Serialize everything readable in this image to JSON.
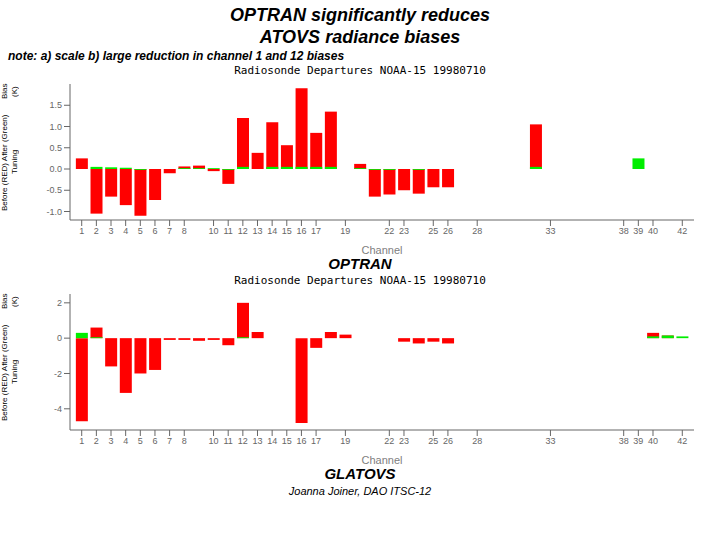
{
  "title": "OPTRAN significantly reduces",
  "subtitle": "ATOVS radiance biases",
  "annotations": [
    "note: a) scale b) large reduction in channel 1 and 12 biases",
    "Joanna Joiner, DAO ITSC-12"
  ],
  "chart_data": [
    {
      "type": "bar",
      "title": "Radiosonde Departures  NOAA-15  19980710",
      "xlabel": "Channel",
      "ylabel": "Before (RED) After (Green) Tuning\nBias (K)",
      "annotations": [
        "OPTRAN"
      ],
      "grid": false,
      "x": [
        1,
        2,
        3,
        4,
        5,
        6,
        7,
        8,
        9,
        10,
        11,
        12,
        13,
        14,
        15,
        16,
        17,
        18,
        19,
        20,
        21,
        22,
        23,
        24,
        25,
        26,
        27,
        28,
        29,
        30,
        31,
        32,
        33,
        34,
        35,
        36,
        37,
        38,
        39,
        40,
        41,
        42
      ],
      "xlim": [
        0.2,
        42.8
      ],
      "xticks": [
        1,
        2,
        3,
        4,
        5,
        6,
        7,
        8,
        10,
        11,
        12,
        13,
        14,
        15,
        16,
        17,
        19,
        22,
        23,
        25,
        26,
        28,
        33,
        38,
        39,
        40,
        42
      ],
      "ylim": [
        -1.2,
        2.0
      ],
      "yticks": [
        {
          "value": -1.0,
          "label": "-1.0"
        },
        {
          "value": -0.5,
          "label": "-0.5"
        },
        {
          "value": 0.0,
          "label": "0.0"
        },
        {
          "value": 0.5,
          "label": "0.5"
        },
        {
          "value": 1.0,
          "label": "1.0"
        },
        {
          "value": 1.5,
          "label": "1.5"
        }
      ],
      "series": [
        {
          "color": "red",
          "values": [
            0.25,
            -1.05,
            -0.65,
            -0.85,
            -1.1,
            -0.73,
            -0.1,
            0.06,
            0.08,
            -0.05,
            -0.35,
            1.2,
            0.38,
            1.1,
            0.56,
            1.9,
            0.85,
            1.35,
            0.0,
            0.12,
            -0.65,
            -0.6,
            -0.5,
            -0.58,
            -0.43,
            -0.43,
            0.0,
            0.0,
            0.0,
            0.0,
            0.0,
            1.05,
            0.0,
            0.0,
            0.0,
            0.0,
            0.0,
            0.0,
            0.0,
            0.0,
            0.0,
            0.0
          ]
        },
        {
          "color": "#00ee00",
          "values": [
            0.0,
            0.05,
            0.04,
            0.03,
            -0.02,
            0.0,
            0.0,
            0.02,
            0.02,
            0.02,
            -0.02,
            0.05,
            0.0,
            0.05,
            0.05,
            0.05,
            0.05,
            0.05,
            0.0,
            0.02,
            -0.02,
            -0.02,
            0.0,
            -0.02,
            0.0,
            0.0,
            0.0,
            0.0,
            0.0,
            0.0,
            0.0,
            0.05,
            0.0,
            0.0,
            0.0,
            0.0,
            0.0,
            0.0,
            0.25,
            0.0,
            0.0,
            0.0
          ]
        }
      ]
    },
    {
      "type": "bar",
      "title": "Radiosonde Departures  NOAA-15  19980710",
      "xlabel": "Channel",
      "ylabel": "Before (RED) After (Green) Tuning\nBias (K)",
      "annotations": [
        "GLATOVS"
      ],
      "grid": false,
      "x": [
        1,
        2,
        3,
        4,
        5,
        6,
        7,
        8,
        9,
        10,
        11,
        12,
        13,
        14,
        15,
        16,
        17,
        18,
        19,
        20,
        21,
        22,
        23,
        24,
        25,
        26,
        27,
        28,
        29,
        30,
        31,
        32,
        33,
        34,
        35,
        36,
        37,
        38,
        39,
        40,
        41,
        42
      ],
      "xlim": [
        0.2,
        42.8
      ],
      "xticks": [
        1,
        2,
        3,
        4,
        5,
        6,
        7,
        8,
        10,
        11,
        12,
        13,
        14,
        15,
        16,
        17,
        19,
        22,
        23,
        25,
        26,
        28,
        33,
        38,
        39,
        40,
        42
      ],
      "ylim": [
        -5.2,
        2.5
      ],
      "yticks": [
        -4,
        -2,
        0,
        2
      ],
      "series": [
        {
          "color": "red",
          "values": [
            -4.7,
            0.6,
            -1.6,
            -3.1,
            -2.0,
            -1.8,
            -0.1,
            -0.1,
            -0.15,
            -0.1,
            -0.4,
            2.0,
            0.35,
            0.0,
            0.0,
            -4.8,
            -0.55,
            0.35,
            0.2,
            0.0,
            0.0,
            0.0,
            -0.2,
            -0.3,
            -0.2,
            -0.3,
            0.0,
            0.0,
            0.0,
            0.0,
            0.0,
            0.0,
            0.0,
            0.0,
            0.0,
            0.0,
            0.0,
            0.0,
            0.0,
            0.3,
            0.15,
            0.0
          ]
        },
        {
          "color": "#00ee00",
          "values": [
            0.3,
            0.05,
            0.0,
            0.0,
            0.0,
            0.0,
            0.0,
            0.0,
            0.0,
            0.0,
            0.0,
            0.05,
            0.0,
            0.0,
            0.0,
            0.0,
            0.0,
            0.0,
            0.0,
            0.0,
            0.0,
            0.0,
            0.0,
            0.0,
            0.0,
            0.0,
            0.0,
            0.0,
            0.0,
            0.0,
            0.0,
            0.0,
            0.0,
            0.0,
            0.0,
            0.0,
            0.0,
            0.0,
            0.0,
            0.1,
            0.15,
            0.1
          ]
        }
      ]
    }
  ]
}
